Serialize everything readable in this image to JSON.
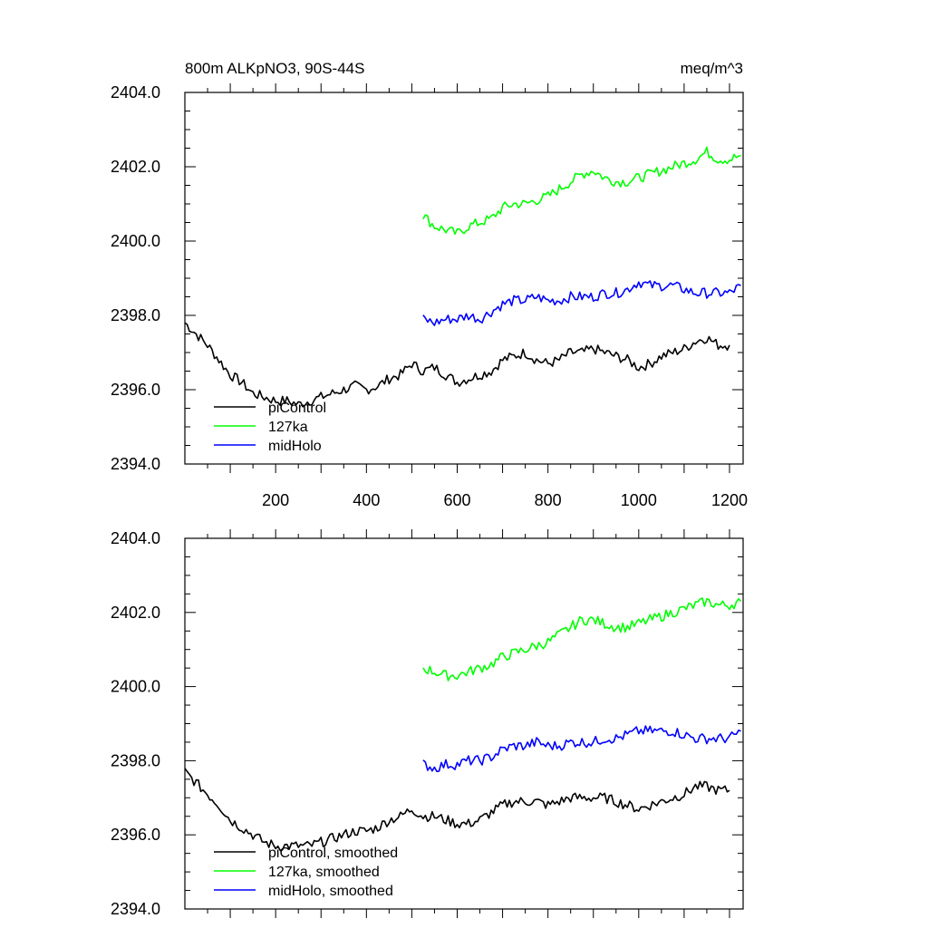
{
  "chart_data": [
    {
      "type": "line",
      "title": "800m ALKpNO3, 90S-44S",
      "units": "meq/m^3",
      "xlim": [
        0,
        1230
      ],
      "ylim": [
        2394.0,
        2404.0
      ],
      "x_ticks": [
        200,
        400,
        600,
        800,
        1000,
        1200
      ],
      "x_tick_labels": [
        "200",
        "400",
        "600",
        "800",
        "1000",
        "1200"
      ],
      "y_ticks": [
        2394.0,
        2396.0,
        2398.0,
        2400.0,
        2402.0,
        2404.0
      ],
      "y_tick_labels": [
        "2394.0",
        "2396.0",
        "2398.0",
        "2400.0",
        "2402.0",
        "2404.0"
      ],
      "legend_position": "bottom-left",
      "series": [
        {
          "name": "piControl",
          "color": "#000000",
          "x": [
            0,
            25,
            50,
            75,
            100,
            125,
            150,
            175,
            200,
            225,
            250,
            275,
            300,
            325,
            350,
            375,
            400,
            425,
            450,
            475,
            500,
            525,
            550,
            575,
            600,
            625,
            650,
            675,
            700,
            725,
            750,
            775,
            800,
            825,
            850,
            875,
            900,
            925,
            950,
            975,
            1000,
            1025,
            1050,
            1075,
            1100,
            1125,
            1150,
            1175,
            1200
          ],
          "y": [
            2397.8,
            2397.5,
            2397.2,
            2396.8,
            2396.4,
            2396.2,
            2395.9,
            2395.8,
            2395.7,
            2395.7,
            2395.6,
            2395.7,
            2395.8,
            2395.9,
            2396.0,
            2396.1,
            2396.0,
            2396.1,
            2396.3,
            2396.4,
            2396.7,
            2396.5,
            2396.6,
            2396.4,
            2396.2,
            2396.3,
            2396.4,
            2396.5,
            2396.8,
            2396.9,
            2397.0,
            2396.8,
            2396.7,
            2396.8,
            2397.0,
            2397.0,
            2397.1,
            2397.0,
            2396.9,
            2396.8,
            2396.6,
            2396.7,
            2396.9,
            2397.0,
            2397.1,
            2397.3,
            2397.4,
            2397.2,
            2397.2
          ]
        },
        {
          "name": "127ka",
          "color": "#00ff00",
          "x": [
            525,
            550,
            575,
            600,
            625,
            650,
            675,
            700,
            725,
            750,
            775,
            800,
            825,
            850,
            875,
            900,
            925,
            950,
            975,
            1000,
            1025,
            1050,
            1075,
            1100,
            1125,
            1150,
            1175,
            1200,
            1225
          ],
          "y": [
            2400.7,
            2400.4,
            2400.3,
            2400.2,
            2400.4,
            2400.5,
            2400.6,
            2400.9,
            2401.0,
            2401.0,
            2401.1,
            2401.2,
            2401.4,
            2401.6,
            2401.8,
            2401.9,
            2401.7,
            2401.6,
            2401.6,
            2401.7,
            2401.8,
            2401.9,
            2402.0,
            2402.1,
            2402.2,
            2402.4,
            2402.2,
            2402.2,
            2402.3
          ]
        },
        {
          "name": "midHolo",
          "color": "#0000ff",
          "x": [
            525,
            550,
            575,
            600,
            625,
            650,
            675,
            700,
            725,
            750,
            775,
            800,
            825,
            850,
            875,
            900,
            925,
            950,
            975,
            1000,
            1025,
            1050,
            1075,
            1100,
            1125,
            1150,
            1175,
            1200,
            1225
          ],
          "y": [
            2397.9,
            2397.8,
            2397.9,
            2397.9,
            2398.0,
            2397.9,
            2398.1,
            2398.3,
            2398.4,
            2398.4,
            2398.5,
            2398.4,
            2398.4,
            2398.5,
            2398.5,
            2398.5,
            2398.6,
            2398.6,
            2398.7,
            2398.9,
            2398.8,
            2398.8,
            2398.8,
            2398.7,
            2398.6,
            2398.6,
            2398.6,
            2398.6,
            2398.8
          ]
        }
      ]
    },
    {
      "type": "line",
      "xlim": [
        0,
        1230
      ],
      "ylim": [
        2394.0,
        2404.0
      ],
      "y_ticks": [
        2394.0,
        2396.0,
        2398.0,
        2400.0,
        2402.0,
        2404.0
      ],
      "y_tick_labels": [
        "2394.0",
        "2396.0",
        "2398.0",
        "2400.0",
        "2402.0",
        "2404.0"
      ],
      "legend_position": "bottom-left",
      "series": [
        {
          "name": "piControl, smoothed",
          "color": "#000000",
          "x": [
            0,
            25,
            50,
            75,
            100,
            125,
            150,
            175,
            200,
            225,
            250,
            275,
            300,
            325,
            350,
            375,
            400,
            425,
            450,
            475,
            500,
            525,
            550,
            575,
            600,
            625,
            650,
            675,
            700,
            725,
            750,
            775,
            800,
            825,
            850,
            875,
            900,
            925,
            950,
            975,
            1000,
            1025,
            1050,
            1075,
            1100,
            1125,
            1150,
            1175,
            1200
          ],
          "y": [
            2397.7,
            2397.4,
            2397.1,
            2396.8,
            2396.4,
            2396.2,
            2396.0,
            2395.8,
            2395.7,
            2395.7,
            2395.7,
            2395.7,
            2395.8,
            2395.9,
            2396.0,
            2396.1,
            2396.1,
            2396.2,
            2396.4,
            2396.5,
            2396.7,
            2396.5,
            2396.5,
            2396.4,
            2396.3,
            2396.3,
            2396.4,
            2396.6,
            2396.8,
            2396.9,
            2396.9,
            2396.9,
            2396.8,
            2396.9,
            2397.0,
            2397.0,
            2397.0,
            2397.0,
            2396.9,
            2396.8,
            2396.7,
            2396.8,
            2396.9,
            2397.0,
            2397.1,
            2397.3,
            2397.3,
            2397.2,
            2397.2
          ]
        },
        {
          "name": "127ka, smoothed",
          "color": "#00ff00",
          "x": [
            525,
            550,
            575,
            600,
            625,
            650,
            675,
            700,
            725,
            750,
            775,
            800,
            825,
            850,
            875,
            900,
            925,
            950,
            975,
            1000,
            1025,
            1050,
            1075,
            1100,
            1125,
            1150,
            1175,
            1200,
            1225
          ],
          "y": [
            2400.5,
            2400.4,
            2400.3,
            2400.3,
            2400.4,
            2400.5,
            2400.6,
            2400.8,
            2400.9,
            2401.0,
            2401.1,
            2401.2,
            2401.4,
            2401.6,
            2401.8,
            2401.8,
            2401.7,
            2401.6,
            2401.6,
            2401.7,
            2401.8,
            2401.9,
            2402.0,
            2402.1,
            2402.2,
            2402.3,
            2402.2,
            2402.2,
            2402.3
          ]
        },
        {
          "name": "midHolo, smoothed",
          "color": "#0000ff",
          "x": [
            525,
            550,
            575,
            600,
            625,
            650,
            675,
            700,
            725,
            750,
            775,
            800,
            825,
            850,
            875,
            900,
            925,
            950,
            975,
            1000,
            1025,
            1050,
            1075,
            1100,
            1125,
            1150,
            1175,
            1200,
            1225
          ],
          "y": [
            2397.9,
            2397.8,
            2397.9,
            2397.9,
            2398.0,
            2398.0,
            2398.1,
            2398.3,
            2398.4,
            2398.4,
            2398.5,
            2398.4,
            2398.4,
            2398.5,
            2398.5,
            2398.5,
            2398.6,
            2398.6,
            2398.7,
            2398.8,
            2398.8,
            2398.8,
            2398.8,
            2398.7,
            2398.6,
            2398.6,
            2398.6,
            2398.6,
            2398.8
          ]
        }
      ]
    }
  ]
}
